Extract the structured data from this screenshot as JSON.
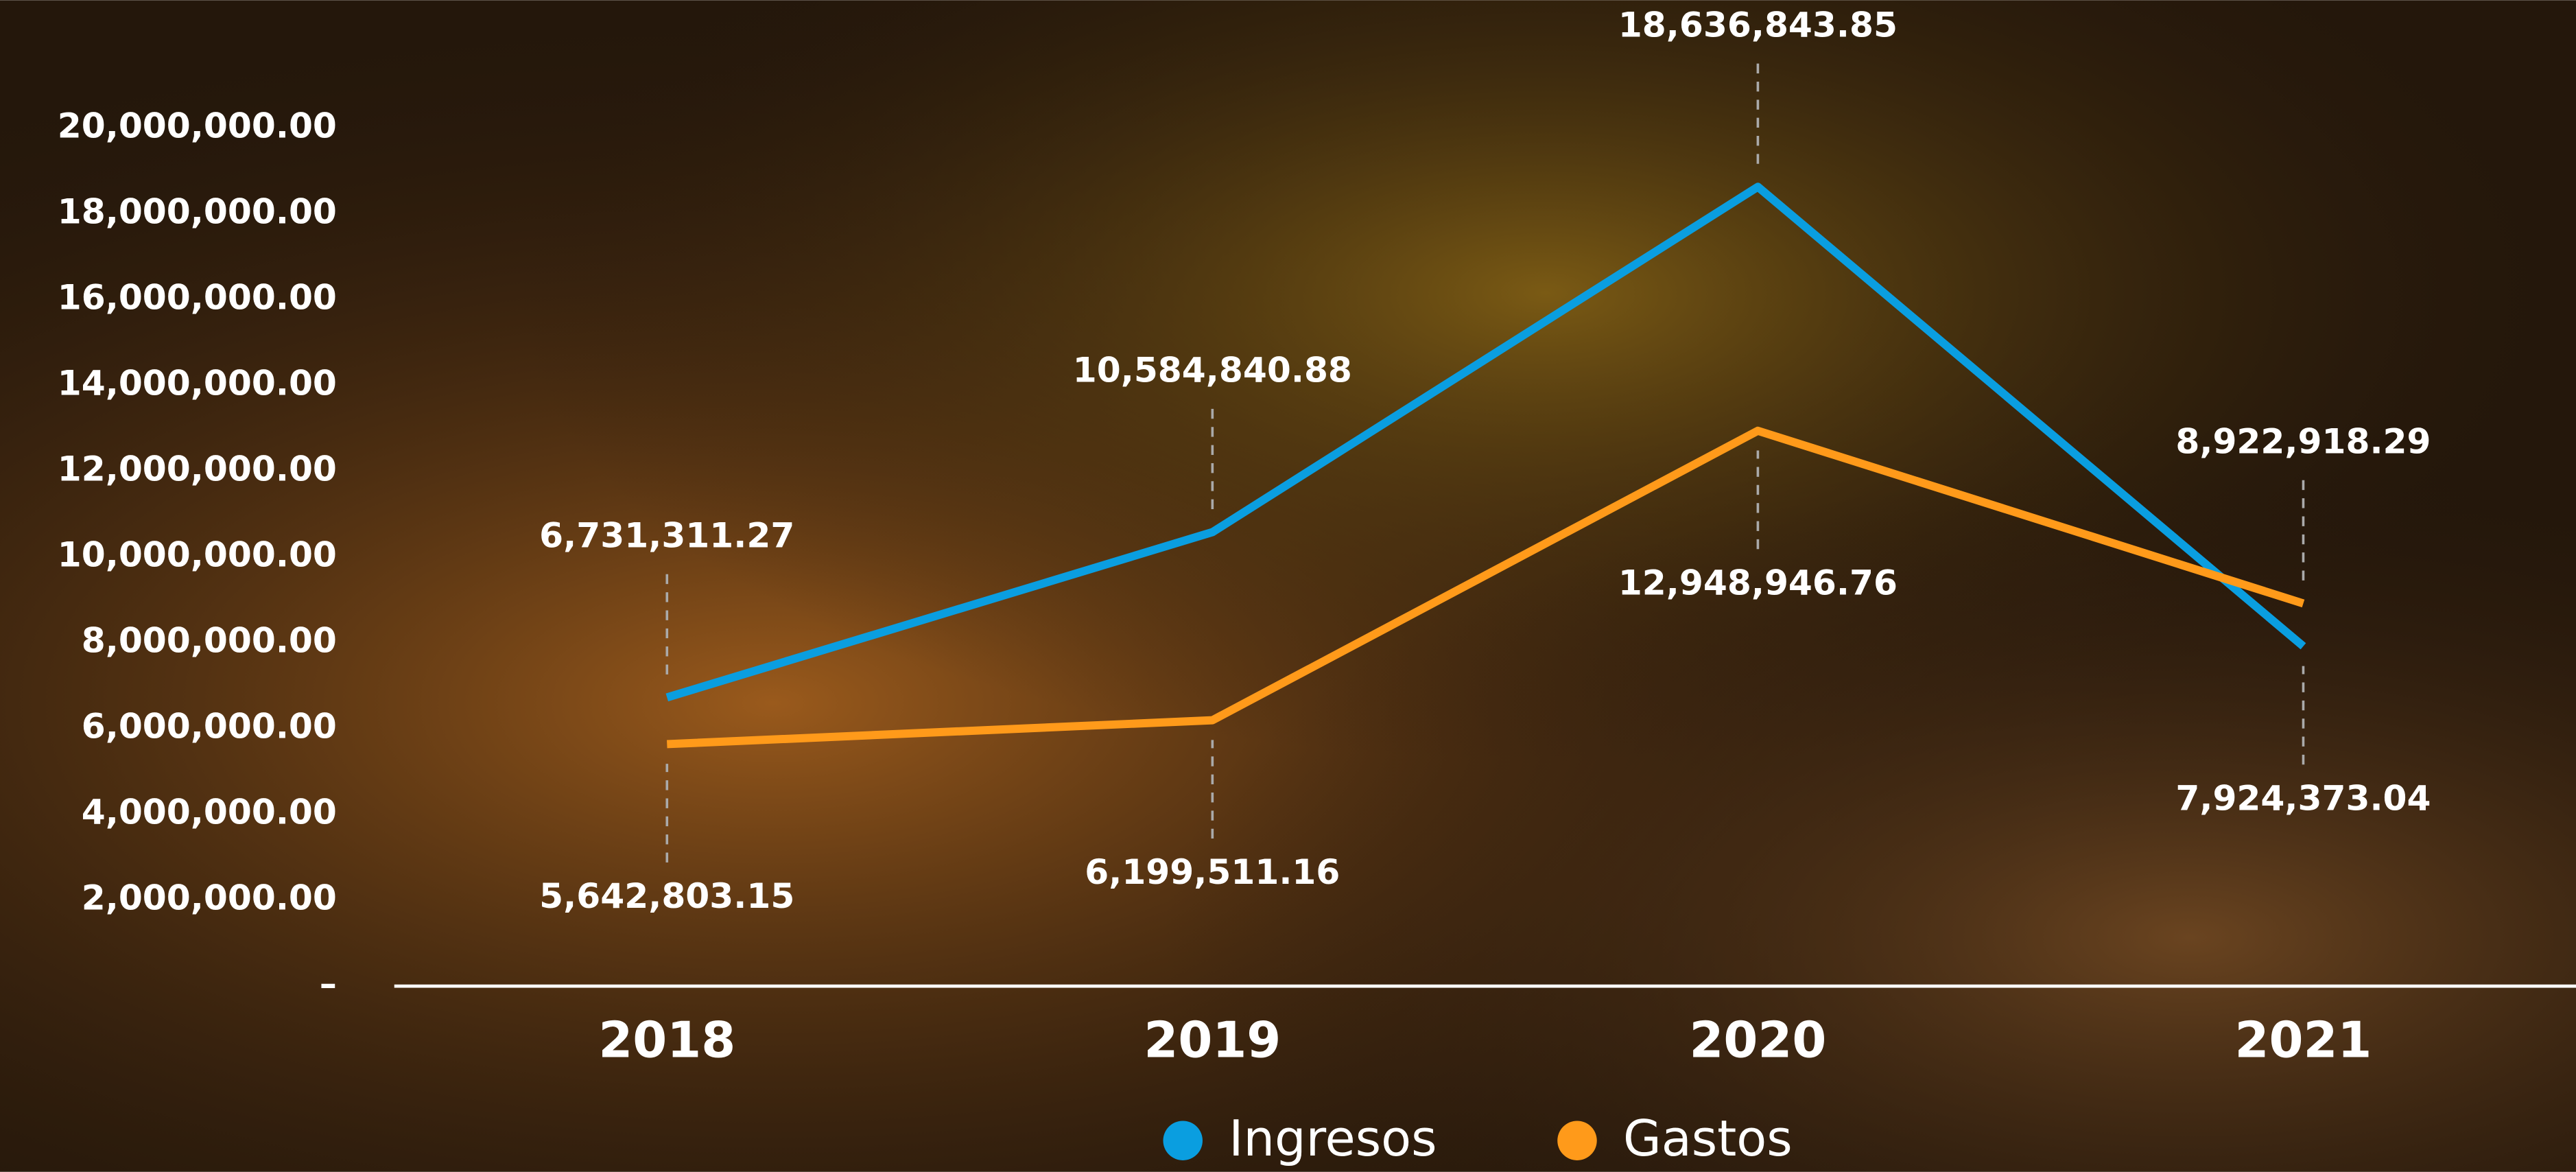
{
  "chart_data": {
    "type": "line",
    "categories": [
      "2018",
      "2019",
      "2020",
      "2021"
    ],
    "series": [
      {
        "name": "Ingresos",
        "color": "#0a9ee0",
        "values": [
          6731311.27,
          10584840.88,
          18636843.85,
          7924373.04
        ],
        "value_labels": [
          "6,731,311.27",
          "10,584,840.88",
          "18,636,843.85",
          "7,924,373.04"
        ]
      },
      {
        "name": "Gastos",
        "color": "#ff9a1a",
        "values": [
          5642803.15,
          6199511.16,
          12948946.76,
          8922918.29
        ],
        "value_labels": [
          "5,642,803.15",
          "6,199,511.16",
          "12,948,946.76",
          "8,922,918.29"
        ]
      }
    ],
    "ylim": [
      0,
      20000000
    ],
    "yticks": [
      {
        "value": 0,
        "label": "–"
      },
      {
        "value": 2000000,
        "label": "2,000,000.00"
      },
      {
        "value": 4000000,
        "label": "4,000,000.00"
      },
      {
        "value": 6000000,
        "label": "6,000,000.00"
      },
      {
        "value": 8000000,
        "label": "8,000,000.00"
      },
      {
        "value": 10000000,
        "label": "10,000,000.00"
      },
      {
        "value": 12000000,
        "label": "12,000,000.00"
      },
      {
        "value": 14000000,
        "label": "14,000,000.00"
      },
      {
        "value": 16000000,
        "label": "16,000,000.00"
      },
      {
        "value": 18000000,
        "label": "18,000,000.00"
      },
      {
        "value": 20000000,
        "label": "20,000,000.00"
      }
    ],
    "grid": false
  }
}
